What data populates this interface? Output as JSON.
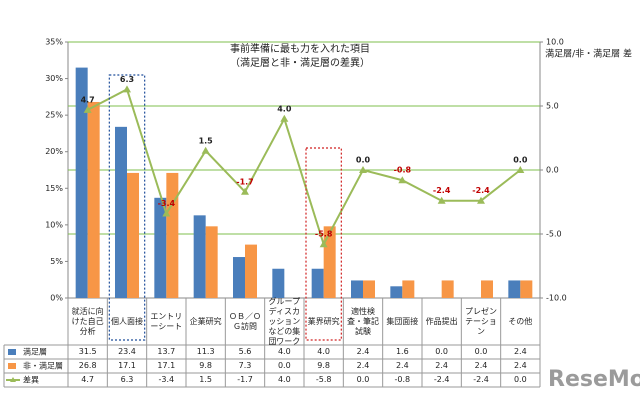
{
  "chart_data": {
    "type": "bar-line",
    "title": "事前準備に最も力を入れた項目",
    "subtitle": "（満足層と非・満足層の差異）",
    "y2_label": "満足層/非・満足層 差",
    "categories": [
      "就活に向けた自己分析",
      "個人面接",
      "エントリーシート",
      "企業研究",
      "ＯＢ／ＯＧ訪問",
      "グループディスカッションなどの集団ワーク",
      "業界研究",
      "適性検査・筆記試験",
      "集団面接",
      "作品提出",
      "プレゼンテーション",
      "その他"
    ],
    "series": [
      {
        "name": "満足層",
        "color": "#4a7ebb",
        "type": "bar",
        "values": [
          31.5,
          23.4,
          13.7,
          11.3,
          5.6,
          4.0,
          4.0,
          2.4,
          1.6,
          0.0,
          0.0,
          2.4
        ],
        "value_labels": [
          "31.5",
          "23.4",
          "13.7",
          "11.3",
          "5.6",
          "4.0",
          "4.0",
          "2.4",
          "1.6",
          "0.0",
          "0.0",
          "2.4"
        ]
      },
      {
        "name": "非・満足層",
        "color": "#f79646",
        "type": "bar",
        "values": [
          26.8,
          17.1,
          17.1,
          9.8,
          7.3,
          0.0,
          9.8,
          2.4,
          2.4,
          2.4,
          2.4,
          2.4
        ],
        "value_labels": [
          "26.8",
          "17.1",
          "17.1",
          "9.8",
          "7.3",
          "0.0",
          "9.8",
          "2.4",
          "2.4",
          "2.4",
          "2.4",
          "2.4"
        ]
      },
      {
        "name": "差異",
        "color": "#9bbb59",
        "type": "line",
        "axis": "y2",
        "values": [
          4.7,
          6.3,
          -3.4,
          1.5,
          -1.7,
          4.0,
          -5.8,
          0.0,
          -0.8,
          -2.4,
          -2.4,
          0.0
        ],
        "value_labels": [
          "4.7",
          "6.3",
          "-3.4",
          "1.5",
          "-1.7",
          "4.0",
          "-5.8",
          "0.0",
          "-0.8",
          "-2.4",
          "-2.4",
          "0.0"
        ]
      }
    ],
    "ylim": [
      0,
      35
    ],
    "yticks": [
      {
        "value": 0,
        "label": "0%"
      },
      {
        "value": 5,
        "label": "5%"
      },
      {
        "value": 10,
        "label": "10%"
      },
      {
        "value": 15,
        "label": "15%"
      },
      {
        "value": 20,
        "label": "20%"
      },
      {
        "value": 25,
        "label": "25%"
      },
      {
        "value": 30,
        "label": "30%"
      },
      {
        "value": 35,
        "label": "35%"
      }
    ],
    "y2lim": [
      -10,
      10
    ],
    "y2ticks": [
      {
        "value": -10,
        "label": "-10.0"
      },
      {
        "value": -5,
        "label": "-5.0"
      },
      {
        "value": 0,
        "label": "0.0"
      },
      {
        "value": 5,
        "label": "5.0"
      },
      {
        "value": 10,
        "label": "10.0"
      }
    ],
    "grid": "y2",
    "negative_label_color": "#c00000",
    "watermark": "ReseMom"
  }
}
